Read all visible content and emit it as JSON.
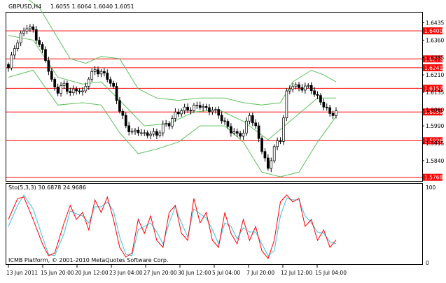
{
  "header": {
    "symbol_timeframe": "GBPUSD,H4",
    "ohlc": "1.6055 1.6064 1.6040 1.6051"
  },
  "stochastic": {
    "label": "Sto(5,3,3) 30.6878 24.9686",
    "level_top": "100",
    "level_bottom": "0",
    "main_color": "#ff0000",
    "signal_color": "#3cc0e0"
  },
  "footer": {
    "copyright": "ICMB Platform, © 2001-2010 MetaQuotes Software Corp."
  },
  "price_scale": {
    "ticks": [
      "1.6435",
      "1.6360",
      "1.6285",
      "1.6210",
      "1.6135",
      "1.6060",
      "1.5990",
      "1.5915",
      "1.5840"
    ]
  },
  "levels": [
    {
      "price": 1.64,
      "label": "1.6400"
    },
    {
      "price": 1.6279,
      "label": "1.6279"
    },
    {
      "price": 1.6241,
      "label": "1.6241"
    },
    {
      "price": 1.6152,
      "label": "1.6152"
    },
    {
      "price": 1.605,
      "label": "1.6050"
    },
    {
      "price": 1.5926,
      "label": "1.5926"
    },
    {
      "price": 1.5768,
      "label": "1.5768"
    }
  ],
  "time_axis": {
    "labels": [
      "13 Jun 2011",
      "15 Jun 20:00",
      "20 Jun 12:00",
      "23 Jun 04:00",
      "27 Jun 20:00",
      "30 Jun 12:00",
      "5 Jul 04:00",
      "7 Jul 20:00",
      "12 Jul 12:00",
      "15 Jul 04:00"
    ]
  },
  "colors": {
    "level_line": "#ff0000",
    "bollinger": "#5cc05c",
    "candle_up": "#ffffff",
    "candle_down": "#000000",
    "frame": "#000000"
  },
  "chart_data": {
    "type": "candlestick",
    "price_range": [
      1.5752,
      1.6482
    ],
    "stochastic_range": [
      0,
      100
    ],
    "close_path": [
      {
        "bar": 0,
        "price": 1.624
      },
      {
        "bar": 2,
        "price": 1.633
      },
      {
        "bar": 4,
        "price": 1.638
      },
      {
        "bar": 6,
        "price": 1.642
      },
      {
        "bar": 8,
        "price": 1.64
      },
      {
        "bar": 10,
        "price": 1.634
      },
      {
        "bar": 12,
        "price": 1.628
      },
      {
        "bar": 14,
        "price": 1.618
      },
      {
        "bar": 16,
        "price": 1.614
      },
      {
        "bar": 18,
        "price": 1.617
      },
      {
        "bar": 20,
        "price": 1.613
      },
      {
        "bar": 22,
        "price": 1.615
      },
      {
        "bar": 24,
        "price": 1.613
      },
      {
        "bar": 26,
        "price": 1.62
      },
      {
        "bar": 28,
        "price": 1.623
      },
      {
        "bar": 30,
        "price": 1.622
      },
      {
        "bar": 32,
        "price": 1.62
      },
      {
        "bar": 34,
        "price": 1.615
      },
      {
        "bar": 36,
        "price": 1.606
      },
      {
        "bar": 38,
        "price": 1.599
      },
      {
        "bar": 40,
        "price": 1.596
      },
      {
        "bar": 42,
        "price": 1.597
      },
      {
        "bar": 44,
        "price": 1.595
      },
      {
        "bar": 46,
        "price": 1.596
      },
      {
        "bar": 48,
        "price": 1.595
      },
      {
        "bar": 50,
        "price": 1.599
      },
      {
        "bar": 52,
        "price": 1.6
      },
      {
        "bar": 54,
        "price": 1.604
      },
      {
        "bar": 56,
        "price": 1.606
      },
      {
        "bar": 58,
        "price": 1.606
      },
      {
        "bar": 60,
        "price": 1.607
      },
      {
        "bar": 62,
        "price": 1.608
      },
      {
        "bar": 64,
        "price": 1.606
      },
      {
        "bar": 66,
        "price": 1.606
      },
      {
        "bar": 68,
        "price": 1.604
      },
      {
        "bar": 70,
        "price": 1.6
      },
      {
        "bar": 72,
        "price": 1.597
      },
      {
        "bar": 74,
        "price": 1.595
      },
      {
        "bar": 76,
        "price": 1.596
      },
      {
        "bar": 78,
        "price": 1.604
      },
      {
        "bar": 80,
        "price": 1.598
      },
      {
        "bar": 82,
        "price": 1.589
      },
      {
        "bar": 84,
        "price": 1.58
      },
      {
        "bar": 86,
        "price": 1.59
      },
      {
        "bar": 88,
        "price": 1.593
      },
      {
        "bar": 90,
        "price": 1.613
      },
      {
        "bar": 92,
        "price": 1.617
      },
      {
        "bar": 94,
        "price": 1.615
      },
      {
        "bar": 96,
        "price": 1.616
      },
      {
        "bar": 98,
        "price": 1.615
      },
      {
        "bar": 100,
        "price": 1.611
      },
      {
        "bar": 102,
        "price": 1.608
      },
      {
        "bar": 104,
        "price": 1.604
      },
      {
        "bar": 106,
        "price": 1.6051
      }
    ],
    "bollinger_upper": [
      {
        "bar": 0,
        "price": 1.66
      },
      {
        "bar": 10,
        "price": 1.65
      },
      {
        "bar": 20,
        "price": 1.628
      },
      {
        "bar": 25,
        "price": 1.626
      },
      {
        "bar": 30,
        "price": 1.629
      },
      {
        "bar": 36,
        "price": 1.628
      },
      {
        "bar": 42,
        "price": 1.615
      },
      {
        "bar": 48,
        "price": 1.611
      },
      {
        "bar": 55,
        "price": 1.61
      },
      {
        "bar": 62,
        "price": 1.611
      },
      {
        "bar": 70,
        "price": 1.611
      },
      {
        "bar": 76,
        "price": 1.609
      },
      {
        "bar": 82,
        "price": 1.608
      },
      {
        "bar": 88,
        "price": 1.609
      },
      {
        "bar": 92,
        "price": 1.618
      },
      {
        "bar": 98,
        "price": 1.623
      },
      {
        "bar": 102,
        "price": 1.621
      },
      {
        "bar": 106,
        "price": 1.618
      }
    ],
    "bollinger_middle": [
      {
        "bar": 0,
        "price": 1.638
      },
      {
        "bar": 8,
        "price": 1.636
      },
      {
        "bar": 16,
        "price": 1.62
      },
      {
        "bar": 24,
        "price": 1.617
      },
      {
        "bar": 30,
        "price": 1.618
      },
      {
        "bar": 36,
        "price": 1.61
      },
      {
        "bar": 44,
        "price": 1.599
      },
      {
        "bar": 52,
        "price": 1.6
      },
      {
        "bar": 60,
        "price": 1.605
      },
      {
        "bar": 68,
        "price": 1.606
      },
      {
        "bar": 76,
        "price": 1.601
      },
      {
        "bar": 84,
        "price": 1.593
      },
      {
        "bar": 92,
        "price": 1.602
      },
      {
        "bar": 100,
        "price": 1.611
      },
      {
        "bar": 106,
        "price": 1.611
      }
    ],
    "bollinger_lower": [
      {
        "bar": 0,
        "price": 1.62
      },
      {
        "bar": 8,
        "price": 1.623
      },
      {
        "bar": 16,
        "price": 1.608
      },
      {
        "bar": 24,
        "price": 1.609
      },
      {
        "bar": 30,
        "price": 1.608
      },
      {
        "bar": 36,
        "price": 1.596
      },
      {
        "bar": 42,
        "price": 1.587
      },
      {
        "bar": 48,
        "price": 1.589
      },
      {
        "bar": 55,
        "price": 1.592
      },
      {
        "bar": 62,
        "price": 1.599
      },
      {
        "bar": 70,
        "price": 1.599
      },
      {
        "bar": 76,
        "price": 1.592
      },
      {
        "bar": 82,
        "price": 1.579
      },
      {
        "bar": 88,
        "price": 1.577
      },
      {
        "bar": 94,
        "price": 1.579
      },
      {
        "bar": 100,
        "price": 1.592
      },
      {
        "bar": 106,
        "price": 1.603
      }
    ],
    "stoch_main": [
      {
        "bar": 0,
        "value": 60
      },
      {
        "bar": 3,
        "value": 90
      },
      {
        "bar": 5,
        "value": 92
      },
      {
        "bar": 8,
        "value": 60
      },
      {
        "bar": 11,
        "value": 25
      },
      {
        "bar": 13,
        "value": 8
      },
      {
        "bar": 15,
        "value": 12
      },
      {
        "bar": 18,
        "value": 55
      },
      {
        "bar": 20,
        "value": 80
      },
      {
        "bar": 22,
        "value": 60
      },
      {
        "bar": 24,
        "value": 70
      },
      {
        "bar": 26,
        "value": 45
      },
      {
        "bar": 28,
        "value": 88
      },
      {
        "bar": 30,
        "value": 70
      },
      {
        "bar": 32,
        "value": 92
      },
      {
        "bar": 34,
        "value": 60
      },
      {
        "bar": 36,
        "value": 20
      },
      {
        "bar": 38,
        "value": 6
      },
      {
        "bar": 40,
        "value": 12
      },
      {
        "bar": 42,
        "value": 60
      },
      {
        "bar": 44,
        "value": 40
      },
      {
        "bar": 46,
        "value": 65
      },
      {
        "bar": 48,
        "value": 30
      },
      {
        "bar": 50,
        "value": 20
      },
      {
        "bar": 52,
        "value": 70
      },
      {
        "bar": 54,
        "value": 80
      },
      {
        "bar": 56,
        "value": 40
      },
      {
        "bar": 58,
        "value": 30
      },
      {
        "bar": 60,
        "value": 90
      },
      {
        "bar": 62,
        "value": 55
      },
      {
        "bar": 64,
        "value": 70
      },
      {
        "bar": 66,
        "value": 30
      },
      {
        "bar": 68,
        "value": 20
      },
      {
        "bar": 70,
        "value": 70
      },
      {
        "bar": 72,
        "value": 40
      },
      {
        "bar": 74,
        "value": 25
      },
      {
        "bar": 76,
        "value": 60
      },
      {
        "bar": 78,
        "value": 30
      },
      {
        "bar": 80,
        "value": 50
      },
      {
        "bar": 82,
        "value": 15
      },
      {
        "bar": 84,
        "value": 4
      },
      {
        "bar": 86,
        "value": 30
      },
      {
        "bar": 88,
        "value": 85
      },
      {
        "bar": 90,
        "value": 95
      },
      {
        "bar": 92,
        "value": 85
      },
      {
        "bar": 94,
        "value": 90
      },
      {
        "bar": 96,
        "value": 50
      },
      {
        "bar": 98,
        "value": 60
      },
      {
        "bar": 100,
        "value": 30
      },
      {
        "bar": 102,
        "value": 45
      },
      {
        "bar": 104,
        "value": 20
      },
      {
        "bar": 106,
        "value": 30.69
      }
    ],
    "stoch_signal": [
      {
        "bar": 0,
        "value": 50
      },
      {
        "bar": 3,
        "value": 80
      },
      {
        "bar": 5,
        "value": 95
      },
      {
        "bar": 8,
        "value": 75
      },
      {
        "bar": 11,
        "value": 35
      },
      {
        "bar": 13,
        "value": 10
      },
      {
        "bar": 15,
        "value": 8
      },
      {
        "bar": 18,
        "value": 40
      },
      {
        "bar": 20,
        "value": 72
      },
      {
        "bar": 22,
        "value": 68
      },
      {
        "bar": 24,
        "value": 65
      },
      {
        "bar": 26,
        "value": 55
      },
      {
        "bar": 28,
        "value": 78
      },
      {
        "bar": 30,
        "value": 78
      },
      {
        "bar": 32,
        "value": 85
      },
      {
        "bar": 34,
        "value": 72
      },
      {
        "bar": 36,
        "value": 35
      },
      {
        "bar": 38,
        "value": 10
      },
      {
        "bar": 40,
        "value": 8
      },
      {
        "bar": 42,
        "value": 45
      },
      {
        "bar": 44,
        "value": 50
      },
      {
        "bar": 46,
        "value": 55
      },
      {
        "bar": 48,
        "value": 42
      },
      {
        "bar": 50,
        "value": 25
      },
      {
        "bar": 52,
        "value": 55
      },
      {
        "bar": 54,
        "value": 78
      },
      {
        "bar": 56,
        "value": 55
      },
      {
        "bar": 58,
        "value": 35
      },
      {
        "bar": 60,
        "value": 75
      },
      {
        "bar": 62,
        "value": 68
      },
      {
        "bar": 64,
        "value": 62
      },
      {
        "bar": 66,
        "value": 45
      },
      {
        "bar": 68,
        "value": 25
      },
      {
        "bar": 70,
        "value": 55
      },
      {
        "bar": 72,
        "value": 50
      },
      {
        "bar": 74,
        "value": 32
      },
      {
        "bar": 76,
        "value": 48
      },
      {
        "bar": 78,
        "value": 42
      },
      {
        "bar": 80,
        "value": 42
      },
      {
        "bar": 82,
        "value": 25
      },
      {
        "bar": 84,
        "value": 8
      },
      {
        "bar": 86,
        "value": 15
      },
      {
        "bar": 88,
        "value": 65
      },
      {
        "bar": 90,
        "value": 90
      },
      {
        "bar": 92,
        "value": 88
      },
      {
        "bar": 94,
        "value": 88
      },
      {
        "bar": 96,
        "value": 65
      },
      {
        "bar": 98,
        "value": 55
      },
      {
        "bar": 100,
        "value": 42
      },
      {
        "bar": 102,
        "value": 40
      },
      {
        "bar": 104,
        "value": 28
      },
      {
        "bar": 106,
        "value": 24.97
      }
    ]
  }
}
